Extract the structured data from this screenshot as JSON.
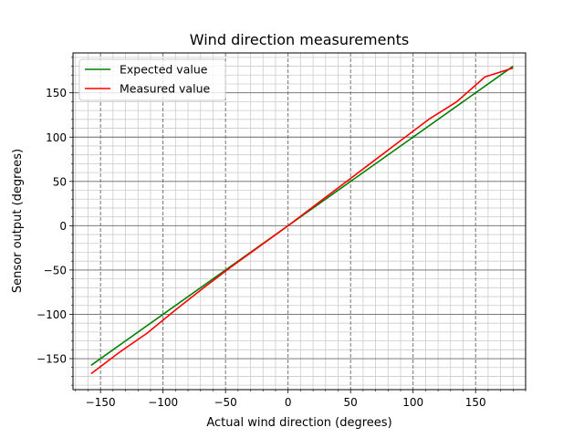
{
  "chart_data": {
    "type": "line",
    "title": "Wind direction measurements",
    "xlabel": "Actual wind direction (degrees)",
    "ylabel": "Sensor output (degrees)",
    "xlim": [
      -172,
      190
    ],
    "ylim": [
      -185,
      195
    ],
    "xticks": [
      -150,
      -100,
      -50,
      0,
      50,
      100,
      150
    ],
    "yticks": [
      -150,
      -100,
      -50,
      0,
      50,
      100,
      150
    ],
    "x_minor_step": 10,
    "y_minor_step": 10,
    "grid": {
      "major": true,
      "minor": true,
      "major_x_style": "dashed",
      "major_y_style": "solid",
      "major_color": "#666666",
      "minor_color": "#cccccc"
    },
    "legend_position": "top-left",
    "series": [
      {
        "name": "Expected value",
        "color": "#008000",
        "x": [
          -157.5,
          180
        ],
        "y": [
          -157.5,
          180
        ]
      },
      {
        "name": "Measured value",
        "color": "#ff0000",
        "x": [
          -157.5,
          -135,
          -112.5,
          -90,
          -67.5,
          -45,
          -22.5,
          0,
          22.5,
          45,
          67.5,
          90,
          112.5,
          135,
          157.5,
          180
        ],
        "y": [
          -167,
          -143,
          -121,
          -95,
          -70,
          -46,
          -23,
          0,
          24,
          48,
          72,
          96,
          120,
          140,
          168,
          178
        ]
      }
    ]
  }
}
